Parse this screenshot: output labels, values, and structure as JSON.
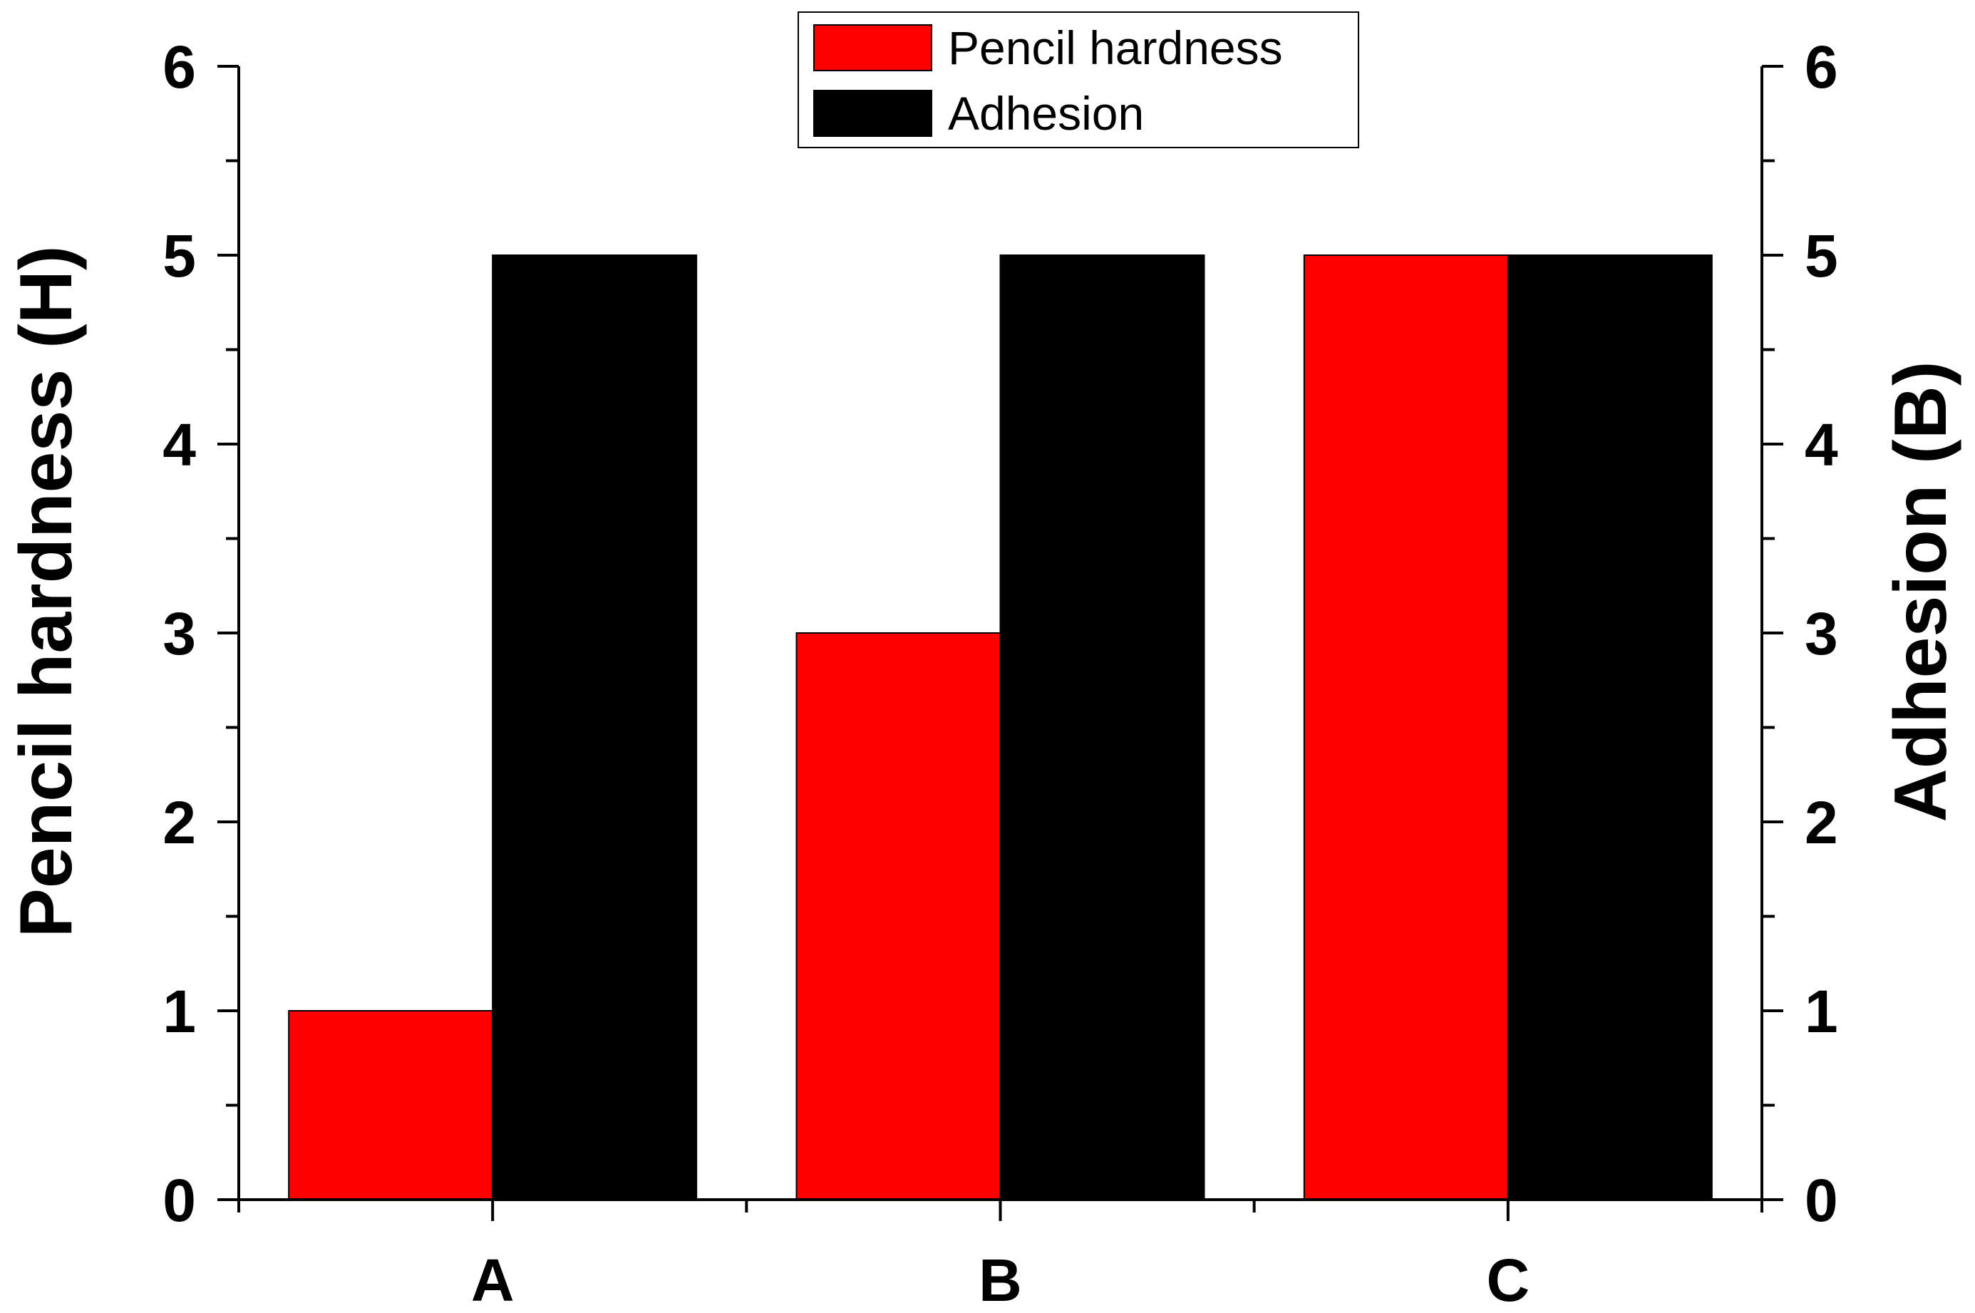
{
  "chart_data": {
    "type": "bar",
    "categories": [
      "A",
      "B",
      "C"
    ],
    "series": [
      {
        "name": "Pencil hardness",
        "color": "#ff0000",
        "axis": "left",
        "values": [
          1,
          3,
          5
        ]
      },
      {
        "name": "Adhesion",
        "color": "#000000",
        "axis": "right",
        "values": [
          5,
          5,
          5
        ]
      }
    ],
    "ylabel_left": "Pencil hardness (H)",
    "ylabel_right": "Adhesion (B)",
    "xlabel": "",
    "ylim": [
      0,
      6
    ],
    "y_ticks": [
      "0",
      "1",
      "2",
      "3",
      "4",
      "5",
      "6"
    ],
    "legend_placement": "top-center",
    "grid": false
  }
}
